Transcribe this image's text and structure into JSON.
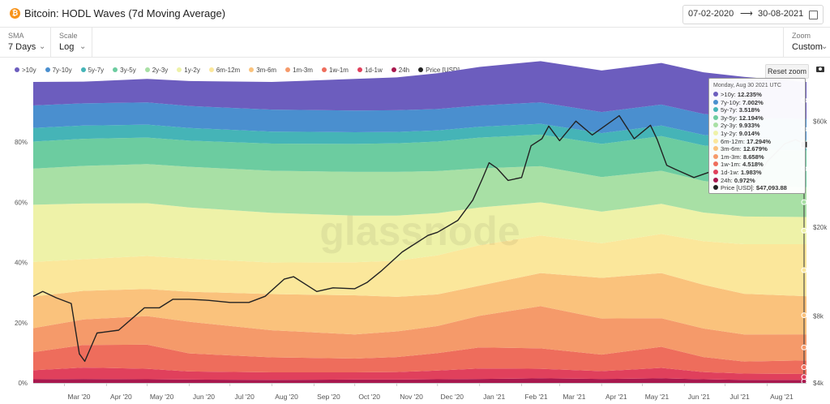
{
  "header": {
    "logo_glyph": "₿",
    "title": "Bitcoin: HODL Waves (7d Moving Average)",
    "date_from": "07-02-2020",
    "date_arrow": "⟶",
    "date_to": "30-08-2021",
    "calendar_icon": "calendar-icon"
  },
  "controls": {
    "sma_label": "SMA",
    "sma_value": "7 Days",
    "scale_label": "Scale",
    "scale_value": "Log",
    "zoom_label": "Zoom",
    "zoom_value": "Custom",
    "chevron": "⌄"
  },
  "toolbar": {
    "reset_zoom": "Reset zoom",
    "camera_icon": "camera-icon"
  },
  "legend": [
    {
      "label": ">10y",
      "color": "#6c5dbe"
    },
    {
      "label": "7y-10y",
      "color": "#4a8fcf"
    },
    {
      "label": "5y-7y",
      "color": "#45b4b7"
    },
    {
      "label": "3y-5y",
      "color": "#6ccca0"
    },
    {
      "label": "2y-3y",
      "color": "#a8e0a5"
    },
    {
      "label": "1y-2y",
      "color": "#eef2a8"
    },
    {
      "label": "6m-12m",
      "color": "#fbe79b"
    },
    {
      "label": "3m-6m",
      "color": "#fac27c"
    },
    {
      "label": "1m-3m",
      "color": "#f59a6a"
    },
    {
      "label": "1w-1m",
      "color": "#ee6d5c"
    },
    {
      "label": "1d-1w",
      "color": "#e0405c"
    },
    {
      "label": "24h",
      "color": "#a8184e"
    },
    {
      "label": "Price [USD]",
      "color": "#222222"
    }
  ],
  "watermark": "glassnode",
  "tooltip": {
    "date": "Monday, Aug 30 2021 UTC",
    "rows": [
      {
        "label": ">10y:",
        "value": "12.235%",
        "color": "#6c5dbe"
      },
      {
        "label": "7y-10y:",
        "value": "7.002%",
        "color": "#4a8fcf"
      },
      {
        "label": "5y-7y:",
        "value": "3.518%",
        "color": "#45b4b7"
      },
      {
        "label": "3y-5y:",
        "value": "12.194%",
        "color": "#6ccca0"
      },
      {
        "label": "2y-3y:",
        "value": "9.933%",
        "color": "#a8e0a5"
      },
      {
        "label": "1y-2y:",
        "value": "9.014%",
        "color": "#eef2a8"
      },
      {
        "label": "6m-12m:",
        "value": "17.294%",
        "color": "#fbe79b"
      },
      {
        "label": "3m-6m:",
        "value": "12.679%",
        "color": "#fac27c"
      },
      {
        "label": "1m-3m:",
        "value": "8.658%",
        "color": "#f59a6a"
      },
      {
        "label": "1w-1m:",
        "value": "4.518%",
        "color": "#ee6d5c"
      },
      {
        "label": "1d-1w:",
        "value": "1.983%",
        "color": "#e0405c"
      },
      {
        "label": "24h:",
        "value": "0.972%",
        "color": "#a8184e"
      },
      {
        "label": "Price [USD]:",
        "value": "$47,093.88",
        "color": "#222222"
      }
    ]
  },
  "chart_data": {
    "type": "area",
    "title": "Bitcoin: HODL Waves (7d Moving Average)",
    "stacking": "percent",
    "x_tick_labels": [
      "Mar '20",
      "Apr '20",
      "May '20",
      "Jun '20",
      "Jul '20",
      "Aug '20",
      "Sep '20",
      "Oct '20",
      "Nov '20",
      "Dec '20",
      "Jan '21",
      "Feb '21",
      "Mar '21",
      "Apr '21",
      "May '21",
      "Jun '21",
      "Jul '21",
      "Aug '21"
    ],
    "x": [
      "2020-02-07",
      "2020-03-15",
      "2020-05-01",
      "2020-06-01",
      "2020-08-01",
      "2020-10-01",
      "2020-11-01",
      "2020-12-01",
      "2021-01-01",
      "2021-02-15",
      "2021-04-01",
      "2021-05-15",
      "2021-06-15",
      "2021-07-15",
      "2021-08-30"
    ],
    "y_left": {
      "ticks": [
        "0%",
        "20%",
        "40%",
        "60%",
        "80%"
      ],
      "range": [
        0,
        100
      ]
    },
    "y_right": {
      "ticks": [
        "$4k",
        "$8k",
        "$20k",
        "$60k"
      ],
      "scale": "log",
      "range": [
        4000,
        90000
      ]
    },
    "grid": false,
    "legend_position": "top-left",
    "series": [
      {
        "name": "24h",
        "color": "#a8184e",
        "values": [
          1.2,
          1.3,
          1.2,
          1.1,
          1.0,
          1.1,
          1.1,
          1.2,
          1.3,
          1.5,
          1.3,
          1.5,
          1.2,
          1.0,
          0.97
        ]
      },
      {
        "name": "1d-1w",
        "color": "#e0405c",
        "values": [
          3.0,
          3.8,
          3.5,
          2.7,
          2.5,
          2.4,
          2.5,
          2.9,
          3.5,
          3.2,
          2.6,
          3.5,
          2.4,
          2.1,
          1.98
        ]
      },
      {
        "name": "1w-1m",
        "color": "#ee6d5c",
        "values": [
          6.0,
          7.5,
          8.0,
          6.0,
          5.0,
          4.6,
          5.0,
          5.8,
          7.0,
          6.8,
          5.5,
          7.0,
          5.0,
          4.0,
          4.52
        ]
      },
      {
        "name": "1m-3m",
        "color": "#f59a6a",
        "values": [
          8.0,
          8.5,
          9.5,
          10.5,
          9.0,
          8.0,
          8.5,
          9.0,
          10.5,
          14.0,
          12.0,
          9.5,
          9.5,
          9.0,
          8.66
        ]
      },
      {
        "name": "3m-6m",
        "color": "#fac27c",
        "values": [
          10.5,
          9.5,
          9.0,
          10.0,
          12.0,
          13.0,
          11.5,
          10.5,
          10.0,
          11.0,
          13.5,
          15.0,
          14.5,
          13.5,
          12.68
        ]
      },
      {
        "name": "6m-12m",
        "color": "#fbe79b",
        "values": [
          11.5,
          10.5,
          11.0,
          11.0,
          10.5,
          11.0,
          12.0,
          13.0,
          13.5,
          12.5,
          11.5,
          13.0,
          14.5,
          16.5,
          17.29
        ]
      },
      {
        "name": "1y-2y",
        "color": "#eef2a8",
        "values": [
          19.0,
          18.5,
          17.5,
          17.0,
          16.5,
          15.5,
          15.0,
          14.0,
          12.5,
          11.0,
          10.5,
          10.0,
          9.5,
          9.2,
          9.01
        ]
      },
      {
        "name": "2y-3y",
        "color": "#a8e0a5",
        "values": [
          12.0,
          12.5,
          13.0,
          13.5,
          14.0,
          14.5,
          14.5,
          14.0,
          13.0,
          12.0,
          11.5,
          11.0,
          10.5,
          10.2,
          9.93
        ]
      },
      {
        "name": "3y-5y",
        "color": "#6ccca0",
        "values": [
          9.0,
          9.0,
          8.8,
          8.7,
          9.0,
          9.3,
          9.5,
          9.8,
          10.2,
          10.5,
          11.0,
          11.5,
          11.8,
          12.0,
          12.19
        ]
      },
      {
        "name": "5y-7y",
        "color": "#45b4b7",
        "values": [
          4.5,
          4.4,
          4.3,
          4.2,
          4.0,
          3.9,
          3.8,
          3.7,
          3.6,
          3.6,
          3.6,
          3.5,
          3.5,
          3.5,
          3.52
        ]
      },
      {
        "name": "7y-10y",
        "color": "#4a8fcf",
        "values": [
          7.5,
          7.4,
          7.4,
          7.3,
          7.3,
          7.2,
          7.2,
          7.1,
          7.1,
          7.1,
          7.0,
          7.0,
          7.0,
          7.0,
          7.0
        ]
      },
      {
        "name": ">10y",
        "color": "#6c5dbe",
        "values": [
          7.8,
          7.2,
          7.8,
          8.3,
          9.2,
          10.5,
          10.9,
          11.9,
          12.8,
          13.7,
          13.8,
          13.8,
          13.8,
          13.7,
          12.235
        ]
      }
    ],
    "price_series": {
      "name": "Price [USD]",
      "color": "#222222",
      "dates": [
        "2020-02-07",
        "2020-02-14",
        "2020-02-24",
        "2020-03-06",
        "2020-03-12",
        "2020-03-16",
        "2020-03-25",
        "2020-04-10",
        "2020-04-29",
        "2020-05-10",
        "2020-05-20",
        "2020-06-01",
        "2020-06-15",
        "2020-07-01",
        "2020-07-15",
        "2020-07-27",
        "2020-08-10",
        "2020-08-17",
        "2020-09-03",
        "2020-09-15",
        "2020-10-01",
        "2020-10-10",
        "2020-10-21",
        "2020-11-05",
        "2020-11-24",
        "2020-12-01",
        "2020-12-16",
        "2020-12-27",
        "2021-01-03",
        "2021-01-08",
        "2021-01-14",
        "2021-01-22",
        "2021-02-01",
        "2021-02-08",
        "2021-02-16",
        "2021-02-21",
        "2021-03-01",
        "2021-03-13",
        "2021-03-25",
        "2021-04-14",
        "2021-04-25",
        "2021-05-07",
        "2021-05-12",
        "2021-05-19",
        "2021-05-25",
        "2021-06-08",
        "2021-06-20",
        "2021-07-01",
        "2021-07-20",
        "2021-08-01",
        "2021-08-14",
        "2021-08-22",
        "2021-08-30"
      ],
      "values": [
        9800,
        10300,
        9650,
        9100,
        5400,
        5000,
        6700,
        6900,
        8700,
        8700,
        9500,
        9500,
        9400,
        9200,
        9200,
        9800,
        11700,
        12000,
        10300,
        10700,
        10600,
        11300,
        12800,
        15500,
        18400,
        19000,
        21500,
        26500,
        33000,
        39000,
        36800,
        32500,
        33500,
        46500,
        50000,
        57000,
        49000,
        60000,
        52000,
        63500,
        50000,
        57500,
        49500,
        38000,
        36500,
        33500,
        35500,
        34500,
        29800,
        39500,
        47500,
        49500,
        47093.88
      ]
    }
  }
}
